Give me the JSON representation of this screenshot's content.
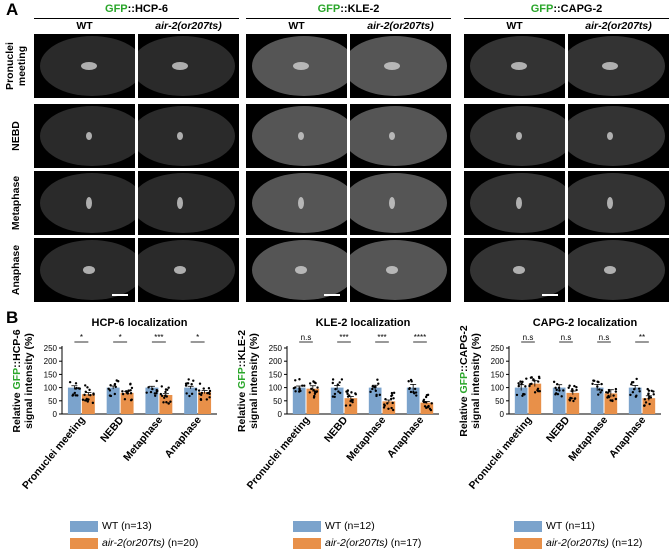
{
  "panelA": {
    "letter": "A",
    "groups": [
      {
        "prefix": "GFP",
        "suffix": "::HCP-6"
      },
      {
        "prefix": "GFP",
        "suffix": "::KLE-2"
      },
      {
        "prefix": "GFP",
        "suffix": "::CAPG-2"
      }
    ],
    "columns": [
      "WT",
      "air-2(or207ts)"
    ],
    "rows": [
      "Pronuclei\nmeeting",
      "NEBD",
      "Metaphase",
      "Anaphase"
    ]
  },
  "panelB": {
    "letter": "B"
  },
  "chart_data": [
    {
      "type": "bar",
      "title": "HCP-6 localization",
      "ylabel_prefix": "Relative ",
      "ylabel_green": "GFP",
      "ylabel_suffix": "::HCP-6",
      "ylabel_line2": "signal intensity (%)",
      "categories": [
        "Pronuclei meeting",
        "NEBD",
        "Metaphase",
        "Anaphase"
      ],
      "ylim": [
        0,
        250
      ],
      "yticks": [
        "0",
        "50",
        "100",
        "150",
        "200",
        "250"
      ],
      "significance": [
        "*",
        "*",
        "***",
        "*"
      ],
      "series": [
        {
          "name": "WT",
          "n_label": "(n=13)",
          "values": [
            100,
            100,
            100,
            100
          ],
          "errors": [
            7,
            6,
            5,
            5
          ]
        },
        {
          "name": "air-2(or207ts)",
          "n_label": "(n=20)",
          "values": [
            75,
            80,
            72,
            83
          ],
          "errors": [
            6,
            6,
            5,
            6
          ]
        }
      ]
    },
    {
      "type": "bar",
      "title": "KLE-2 localization",
      "ylabel_prefix": "Relative ",
      "ylabel_green": "GFP",
      "ylabel_suffix": "::KLE-2",
      "ylabel_line2": "signal intensity (%)",
      "categories": [
        "Pronuclei meeting",
        "NEBD",
        "Metaphase",
        "Anaphase"
      ],
      "ylim": [
        0,
        250
      ],
      "yticks": [
        "0",
        "50",
        "100",
        "150",
        "200",
        "250"
      ],
      "significance": [
        "n.s",
        "***",
        "***",
        "****"
      ],
      "series": [
        {
          "name": "WT",
          "n_label": "(n=12)",
          "values": [
            100,
            100,
            100,
            100
          ],
          "errors": [
            6,
            8,
            9,
            12
          ]
        },
        {
          "name": "air-2(or207ts)",
          "n_label": "(n=17)",
          "values": [
            96,
            60,
            48,
            43
          ],
          "errors": [
            11,
            6,
            5,
            4
          ]
        }
      ]
    },
    {
      "type": "bar",
      "title": "CAPG-2 localization",
      "ylabel_prefix": "Relative ",
      "ylabel_green": "GFP",
      "ylabel_suffix": "::CAPG-2",
      "ylabel_line2": "signal intensity (%)",
      "categories": [
        "Pronuclei meeting",
        "NEBD",
        "Metaphase",
        "Anaphase"
      ],
      "ylim": [
        0,
        250
      ],
      "yticks": [
        "0",
        "50",
        "100",
        "150",
        "200",
        "250"
      ],
      "significance": [
        "n.s",
        "n.s",
        "n.s",
        "**"
      ],
      "series": [
        {
          "name": "WT",
          "n_label": "(n=11)",
          "values": [
            100,
            100,
            100,
            100
          ],
          "errors": [
            11,
            11,
            12,
            8
          ]
        },
        {
          "name": "air-2(or207ts)",
          "n_label": "(n=12)",
          "values": [
            115,
            80,
            78,
            60
          ],
          "errors": [
            11,
            7,
            14,
            9
          ]
        }
      ]
    }
  ],
  "colors": {
    "wt": "#7ba3cc",
    "mutant": "#e89049",
    "gfp": "#2aa62a"
  }
}
